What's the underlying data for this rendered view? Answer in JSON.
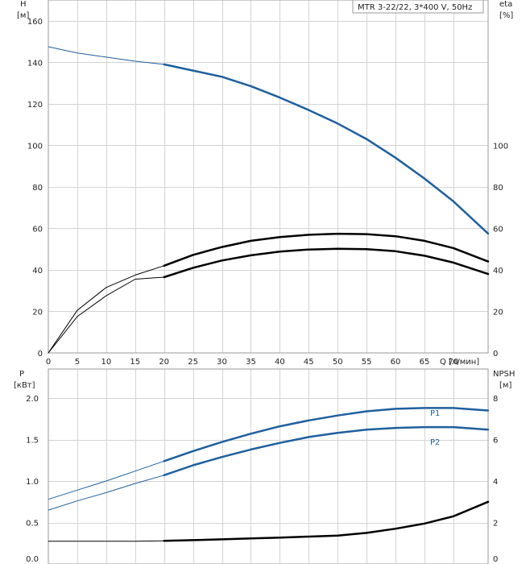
{
  "title": "MTR 3-22/22, 3*400 V, 50Hz",
  "colors": {
    "blue": "#1f5f9e",
    "black": "#000000",
    "grid": "#d4d4d4",
    "frame": "#9a9a9a"
  },
  "top_panel": {
    "left_axis": {
      "name": "H",
      "unit": "[м]",
      "ticks": [
        "0",
        "20",
        "40",
        "60",
        "80",
        "100",
        "120",
        "140",
        "160"
      ]
    },
    "right_axis": {
      "name": "eta",
      "unit": "[%]",
      "ticks": [
        "0",
        "20",
        "40",
        "60",
        "80",
        "100"
      ]
    },
    "x_axis": {
      "ticks": [
        "0",
        "5",
        "10",
        "15",
        "20",
        "25",
        "30",
        "35",
        "40",
        "45",
        "50",
        "55",
        "60",
        "65",
        "70"
      ],
      "label": "Q [л/мин]"
    }
  },
  "bottom_panel": {
    "left_axis": {
      "name": "P",
      "unit": "[кВт]",
      "ticks": [
        "0.0",
        "0.5",
        "1.0",
        "1.5",
        "2.0"
      ]
    },
    "right_axis": {
      "name": "NPSH",
      "unit": "[м]",
      "ticks": [
        "0",
        "2",
        "4",
        "6",
        "8"
      ]
    },
    "series_labels": {
      "p1": "P1",
      "p2": "P2"
    }
  },
  "chart_data": [
    {
      "type": "line",
      "title": "MTR 3-22/22, 3*400 V, 50Hz",
      "xlabel": "Q [л/мин]",
      "ylabel": "H [м]",
      "y2label": "eta [%]",
      "xlim": [
        0,
        76
      ],
      "ylim": [
        0,
        170
      ],
      "y2lim": [
        0,
        170
      ],
      "grid": true,
      "series": [
        {
          "key": "H",
          "axis": "left",
          "color": "#1f5f9e",
          "x": [
            0,
            5,
            10,
            15,
            20,
            25,
            30,
            35,
            40,
            45,
            50,
            55,
            60,
            65,
            70,
            76
          ],
          "y": [
            147.5,
            144.5,
            142.5,
            140.5,
            139,
            136,
            133,
            128.5,
            123,
            117,
            110.5,
            103,
            94,
            84,
            73,
            57.5
          ],
          "operating_from": 20
        },
        {
          "key": "eta_total",
          "axis": "right",
          "color": "#000000",
          "x": [
            0,
            5,
            10,
            15,
            20,
            25,
            30,
            35,
            40,
            45,
            50,
            55,
            60,
            65,
            70,
            76
          ],
          "y": [
            0,
            17.5,
            27.5,
            35.5,
            36.5,
            41,
            44.5,
            47,
            48.8,
            49.8,
            50.2,
            50,
            49,
            46.8,
            43.5,
            38
          ],
          "operating_from": 20
        },
        {
          "key": "eta_pump",
          "axis": "right",
          "color": "#000000",
          "x": [
            0,
            5,
            10,
            15,
            20,
            25,
            30,
            35,
            40,
            45,
            50,
            55,
            60,
            65,
            70,
            76
          ],
          "y": [
            0,
            20.5,
            31.5,
            37.5,
            42,
            47.2,
            51,
            54,
            55.8,
            56.9,
            57.4,
            57.2,
            56.2,
            54,
            50.5,
            44
          ],
          "operating_from": 20
        }
      ]
    },
    {
      "type": "line",
      "xlabel": "Q [л/мин]",
      "ylabel": "P [кВт]",
      "y2label": "NPSH [м]",
      "xlim": [
        0,
        76
      ],
      "ylim": [
        0,
        2.35
      ],
      "y2lim": [
        0,
        9.4
      ],
      "grid": true,
      "series": [
        {
          "name": "P1",
          "axis": "left",
          "color": "#1f5f9e",
          "x": [
            0,
            5,
            10,
            15,
            20,
            25,
            30,
            35,
            40,
            45,
            50,
            55,
            60,
            65,
            70,
            76
          ],
          "y": [
            0.78,
            0.89,
            1.0,
            1.12,
            1.24,
            1.36,
            1.47,
            1.57,
            1.66,
            1.73,
            1.79,
            1.84,
            1.87,
            1.88,
            1.88,
            1.85
          ],
          "operating_from": 20
        },
        {
          "name": "P2",
          "axis": "left",
          "color": "#1f5f9e",
          "x": [
            0,
            5,
            10,
            15,
            20,
            25,
            30,
            35,
            40,
            45,
            50,
            55,
            60,
            65,
            70,
            76
          ],
          "y": [
            0.65,
            0.76,
            0.86,
            0.97,
            1.07,
            1.19,
            1.29,
            1.38,
            1.46,
            1.53,
            1.58,
            1.62,
            1.64,
            1.65,
            1.65,
            1.62
          ],
          "operating_from": 20
        },
        {
          "key": "NPSH",
          "axis": "right",
          "color": "#000000",
          "x": [
            0,
            5,
            10,
            15,
            20,
            25,
            30,
            35,
            40,
            45,
            50,
            55,
            60,
            65,
            70,
            76
          ],
          "y": [
            1.1,
            1.1,
            1.1,
            1.1,
            1.12,
            1.15,
            1.19,
            1.23,
            1.27,
            1.32,
            1.37,
            1.5,
            1.7,
            1.95,
            2.3,
            3.0
          ],
          "operating_from": 20
        }
      ]
    }
  ]
}
